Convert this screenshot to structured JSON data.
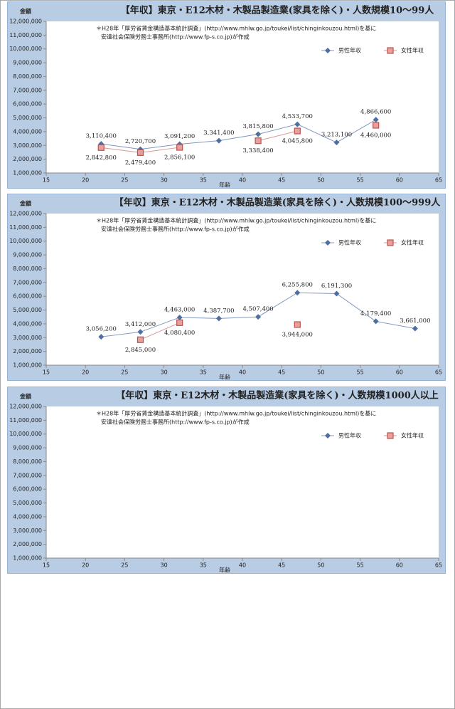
{
  "chart_data": [
    {
      "type": "line",
      "title": "【年収】東京・E12木材・木製品製造業(家具を除く)・人数規模10～99人",
      "notes": [
        "＊H28年「厚労省賃金構造基本統計調査」(http://www.mhlw.go.jp/toukei/list/chinginkouzou.html)を基に",
        "安達社会保険労務士事務所(http://www.fp-s.co.jp)が作成"
      ],
      "y_label": "金額",
      "x_label": "年齢",
      "x": [
        22,
        27,
        32,
        37,
        42,
        47,
        52,
        57
      ],
      "series": [
        {
          "name": "男性年収",
          "color": "#4f6fa0",
          "marker": "diamond",
          "values": [
            3110400,
            2720700,
            3091200,
            3341400,
            3815800,
            4533700,
            3213100,
            4866600
          ],
          "value_labels": [
            "3,110,400",
            "2,720,700",
            "3,091,200",
            "3,341,400",
            "3,815,800",
            "4,533,700",
            "3,213,100",
            "4,866,600"
          ]
        },
        {
          "name": "女性年収",
          "color": "#c0504d",
          "marker": "square",
          "values": [
            2842800,
            2479400,
            2856100,
            null,
            3338400,
            4045800,
            null,
            4460000
          ],
          "value_labels": [
            "2,842,800",
            "2,479,400",
            "2,856,100",
            null,
            "3,338,400",
            "4,045,800",
            null,
            "4,460,000"
          ]
        }
      ],
      "xlim": [
        15,
        65
      ],
      "xticks": [
        15,
        20,
        25,
        30,
        35,
        40,
        45,
        50,
        55,
        60,
        65
      ],
      "ylim": [
        1000000,
        12000000
      ],
      "yticks": [
        {
          "value": 1000000,
          "label": "1,000,000"
        },
        {
          "value": 2000000,
          "label": "2,000,000"
        },
        {
          "value": 3000000,
          "label": "3,000,000"
        },
        {
          "value": 4000000,
          "label": "4,000,000"
        },
        {
          "value": 5000000,
          "label": "5,000,000"
        },
        {
          "value": 6000000,
          "label": "6,000,000"
        },
        {
          "value": 7000000,
          "label": "7,000,000"
        },
        {
          "value": 8000000,
          "label": "8,000,000"
        },
        {
          "value": 9000000,
          "label": "9,000,000"
        },
        {
          "value": 10000000,
          "label": "10,000,000"
        },
        {
          "value": 11000000,
          "label": "11,000,000"
        },
        {
          "value": 12000000,
          "label": "12,000,000"
        }
      ],
      "legend": "top-right"
    },
    {
      "type": "line",
      "title": "【年収】東京・E12木材・木製品製造業(家具を除く)・人数規模100～999人",
      "notes": [
        "＊H28年「厚労省賃金構造基本統計調査」(http://www.mhlw.go.jp/toukei/list/chinginkouzou.html)を基に",
        "安達社会保険労務士事務所(http://www.fp-s.co.jp)が作成"
      ],
      "y_label": "金額",
      "x_label": "年齢",
      "x": [
        22,
        27,
        32,
        37,
        42,
        47,
        52,
        57,
        62
      ],
      "series": [
        {
          "name": "男性年収",
          "color": "#4f6fa0",
          "marker": "diamond",
          "values": [
            3056200,
            3412000,
            4463000,
            4387700,
            4507400,
            6255800,
            6191300,
            4179400,
            3661000
          ],
          "value_labels": [
            "3,056,200",
            "3,412,000",
            "4,463,000",
            "4,387,700",
            "4,507,400",
            "6,255,800",
            "6,191,300",
            "4,179,400",
            "3,661,000"
          ]
        },
        {
          "name": "女性年収",
          "color": "#c0504d",
          "marker": "square",
          "values": [
            null,
            2845000,
            4080400,
            null,
            null,
            3944000,
            null,
            null,
            null
          ],
          "value_labels": [
            null,
            "2,845,000",
            "4,080,400",
            null,
            null,
            "3,944,000",
            null,
            null,
            null
          ]
        }
      ],
      "xlim": [
        15,
        65
      ],
      "xticks": [
        15,
        20,
        25,
        30,
        35,
        40,
        45,
        50,
        55,
        60,
        65
      ],
      "ylim": [
        1000000,
        12000000
      ],
      "yticks": [
        {
          "value": 1000000,
          "label": "1,000,000"
        },
        {
          "value": 2000000,
          "label": "2,000,000"
        },
        {
          "value": 3000000,
          "label": "3,000,000"
        },
        {
          "value": 4000000,
          "label": "4,000,000"
        },
        {
          "value": 5000000,
          "label": "5,000,000"
        },
        {
          "value": 6000000,
          "label": "6,000,000"
        },
        {
          "value": 7000000,
          "label": "7,000,000"
        },
        {
          "value": 8000000,
          "label": "8,000,000"
        },
        {
          "value": 9000000,
          "label": "9,000,000"
        },
        {
          "value": 10000000,
          "label": "10,000,000"
        },
        {
          "value": 11000000,
          "label": "11,000,000"
        },
        {
          "value": 12000000,
          "label": "12,000,000"
        }
      ],
      "legend": "top-right"
    },
    {
      "type": "line",
      "title": "【年収】東京・E12木材・木製品製造業(家具を除く)・人数規模1000人以上",
      "notes": [
        "＊H28年「厚労省賃金構造基本統計調査」(http://www.mhlw.go.jp/toukei/list/chinginkouzou.html)を基に",
        "安達社会保険労務士事務所(http://www.fp-s.co.jp)が作成"
      ],
      "y_label": "金額",
      "x_label": "年齢",
      "x": [],
      "series": [
        {
          "name": "男性年収",
          "color": "#4f6fa0",
          "marker": "diamond",
          "values": [],
          "value_labels": []
        },
        {
          "name": "女性年収",
          "color": "#c0504d",
          "marker": "square",
          "values": [],
          "value_labels": []
        }
      ],
      "xlim": [
        15,
        65
      ],
      "xticks": [
        15,
        20,
        25,
        30,
        35,
        40,
        45,
        50,
        55,
        60,
        65
      ],
      "ylim": [
        1000000,
        12000000
      ],
      "yticks": [
        {
          "value": 1000000,
          "label": "1,000,000"
        },
        {
          "value": 2000000,
          "label": "2,000,000"
        },
        {
          "value": 3000000,
          "label": "3,000,000"
        },
        {
          "value": 4000000,
          "label": "4,000,000"
        },
        {
          "value": 5000000,
          "label": "5,000,000"
        },
        {
          "value": 6000000,
          "label": "6,000,000"
        },
        {
          "value": 7000000,
          "label": "7,000,000"
        },
        {
          "value": 8000000,
          "label": "8,000,000"
        },
        {
          "value": 9000000,
          "label": "9,000,000"
        },
        {
          "value": 10000000,
          "label": "10,000,000"
        },
        {
          "value": 11000000,
          "label": "11,000,000"
        },
        {
          "value": 12000000,
          "label": "12,000,000"
        }
      ],
      "legend": "top-right"
    }
  ]
}
